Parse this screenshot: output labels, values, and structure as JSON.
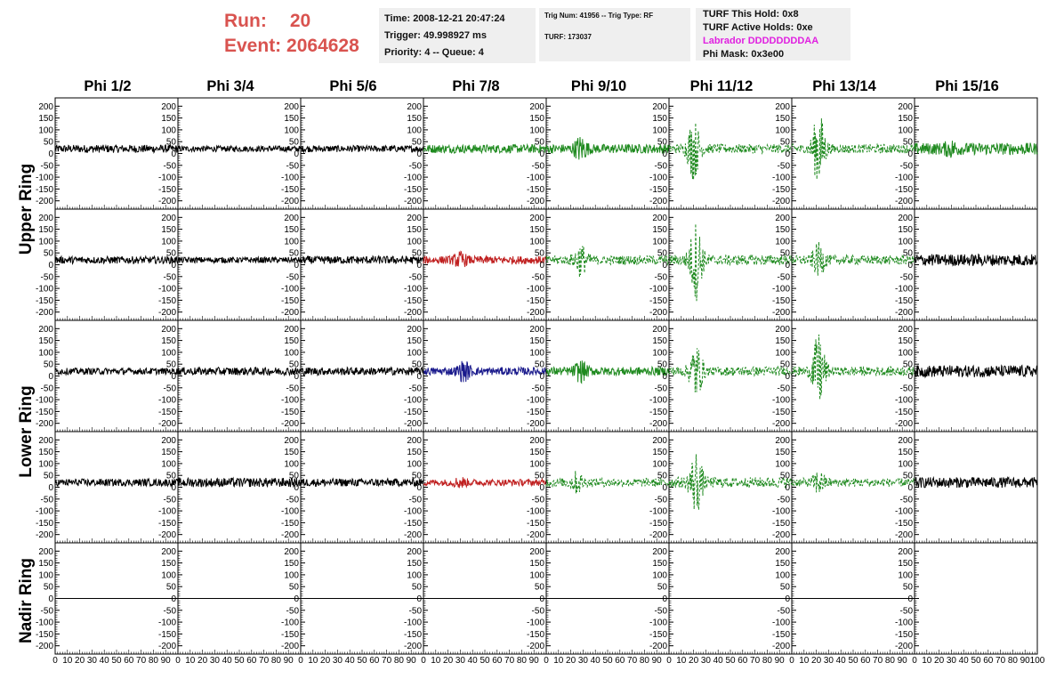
{
  "header": {
    "run_label": "Run:",
    "run_value": "20",
    "event_label": "Event:",
    "event_value": "2064628",
    "box1": {
      "time": "Time: 2008-12-21 20:47:24",
      "trigger": "Trigger: 49.998927 ms",
      "priority": "Priority: 4 -- Queue: 4"
    },
    "box2": {
      "trig": "Trig Num: 41956 -- Trig Type: RF",
      "turf": "TURF: 173037"
    },
    "box3": {
      "this_hold": "TURF This Hold: 0x8",
      "active_holds": "TURF Active Holds: 0xe",
      "labrador": "Labrador DDDDDDDDAA",
      "phi_mask": "Phi Mask: 0x3e00"
    }
  },
  "columns": [
    "Phi 1/2",
    "Phi 3/4",
    "Phi 5/6",
    "Phi 7/8",
    "Phi 9/10",
    "Phi 11/12",
    "Phi 13/14",
    "Phi 15/16"
  ],
  "rings": [
    "Upper Ring",
    "Lower Ring",
    "Nadir Ring"
  ],
  "chart_data": {
    "type": "line",
    "xlim": [
      0,
      100
    ],
    "ylim": [
      -220,
      220
    ],
    "x_ticks": [
      "0",
      "10",
      "20",
      "30",
      "40",
      "50",
      "60",
      "70",
      "80",
      "90",
      "100"
    ],
    "y_ticks": [
      "200",
      "150",
      "100",
      "50",
      "0",
      "-50",
      "-100",
      "-150",
      "-200"
    ],
    "colors": {
      "black": "#000000",
      "green": "#1f8a1f",
      "red": "#c02020",
      "blue": "#1a1a8c"
    },
    "rows": [
      {
        "ring": "Upper Ring",
        "panels": [
          {
            "color": "black",
            "dashed": false,
            "amp": 12,
            "burst": 0,
            "center": 0
          },
          {
            "color": "black",
            "dashed": false,
            "amp": 9,
            "burst": 0,
            "center": 0
          },
          {
            "color": "black",
            "dashed": false,
            "amp": 10,
            "burst": 0,
            "center": 0
          },
          {
            "color": "green",
            "dashed": false,
            "amp": 13,
            "burst": 0,
            "center": 0
          },
          {
            "color": "green",
            "dashed": false,
            "amp": 14,
            "burst": 55,
            "center": 28
          },
          {
            "color": "green",
            "dashed": true,
            "amp": 14,
            "burst": 150,
            "center": 20
          },
          {
            "color": "green",
            "dashed": true,
            "amp": 14,
            "burst": 190,
            "center": 22
          },
          {
            "color": "green",
            "dashed": false,
            "amp": 18,
            "burst": 25,
            "center": 30
          }
        ]
      },
      {
        "ring": "Upper Ring",
        "panels": [
          {
            "color": "black",
            "dashed": false,
            "amp": 11,
            "burst": 0,
            "center": 0
          },
          {
            "color": "black",
            "dashed": false,
            "amp": 9,
            "burst": 0,
            "center": 0
          },
          {
            "color": "black",
            "dashed": false,
            "amp": 12,
            "burst": 0,
            "center": 0
          },
          {
            "color": "red",
            "dashed": false,
            "amp": 12,
            "burst": 30,
            "center": 30
          },
          {
            "color": "green",
            "dashed": true,
            "amp": 14,
            "burst": 75,
            "center": 28
          },
          {
            "color": "green",
            "dashed": true,
            "amp": 16,
            "burst": 200,
            "center": 22
          },
          {
            "color": "green",
            "dashed": true,
            "amp": 14,
            "burst": 75,
            "center": 22
          },
          {
            "color": "black",
            "dashed": false,
            "amp": 18,
            "burst": 0,
            "center": 0
          }
        ]
      },
      {
        "ring": "Lower Ring",
        "panels": [
          {
            "color": "black",
            "dashed": false,
            "amp": 10,
            "burst": 0,
            "center": 0
          },
          {
            "color": "black",
            "dashed": false,
            "amp": 12,
            "burst": 0,
            "center": 0
          },
          {
            "color": "black",
            "dashed": false,
            "amp": 12,
            "burst": 0,
            "center": 0
          },
          {
            "color": "blue",
            "dashed": false,
            "amp": 12,
            "burst": 45,
            "center": 33
          },
          {
            "color": "green",
            "dashed": false,
            "amp": 13,
            "burst": 45,
            "center": 28
          },
          {
            "color": "green",
            "dashed": true,
            "amp": 14,
            "burst": 140,
            "center": 22
          },
          {
            "color": "green",
            "dashed": true,
            "amp": 14,
            "burst": 190,
            "center": 22
          },
          {
            "color": "black",
            "dashed": false,
            "amp": 18,
            "burst": 0,
            "center": 0
          }
        ]
      },
      {
        "ring": "Lower Ring",
        "panels": [
          {
            "color": "black",
            "dashed": false,
            "amp": 11,
            "burst": 0,
            "center": 0
          },
          {
            "color": "black",
            "dashed": false,
            "amp": 14,
            "burst": 0,
            "center": 0
          },
          {
            "color": "black",
            "dashed": false,
            "amp": 12,
            "burst": 0,
            "center": 0
          },
          {
            "color": "red",
            "dashed": false,
            "amp": 10,
            "burst": 20,
            "center": 30
          },
          {
            "color": "green",
            "dashed": true,
            "amp": 13,
            "burst": 45,
            "center": 25
          },
          {
            "color": "green",
            "dashed": true,
            "amp": 16,
            "burst": 160,
            "center": 22
          },
          {
            "color": "green",
            "dashed": true,
            "amp": 13,
            "burst": 50,
            "center": 22
          },
          {
            "color": "black",
            "dashed": false,
            "amp": 16,
            "burst": 0,
            "center": 0
          }
        ]
      },
      {
        "ring": "Nadir Ring",
        "panels": [
          {
            "color": "black",
            "dashed": false,
            "amp": 0,
            "burst": 0,
            "center": 0
          },
          {
            "color": "black",
            "dashed": false,
            "amp": 0,
            "burst": 0,
            "center": 0
          },
          {
            "color": "black",
            "dashed": false,
            "amp": 0,
            "burst": 0,
            "center": 0
          },
          {
            "color": "black",
            "dashed": false,
            "amp": 0,
            "burst": 0,
            "center": 0
          },
          {
            "color": "black",
            "dashed": false,
            "amp": 0,
            "burst": 0,
            "center": 0
          },
          {
            "color": "black",
            "dashed": false,
            "amp": 0,
            "burst": 0,
            "center": 0
          },
          {
            "color": "black",
            "dashed": false,
            "amp": 0,
            "burst": 0,
            "center": 0
          },
          {
            "color": "none",
            "dashed": false,
            "amp": 0,
            "burst": 0,
            "center": 0
          }
        ]
      }
    ]
  }
}
